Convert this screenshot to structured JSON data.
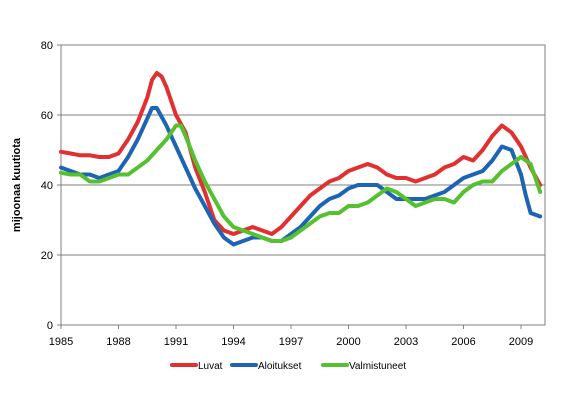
{
  "chart_data": {
    "type": "line",
    "title": "",
    "xlabel": "",
    "ylabel": "mijoonaa kuutiota",
    "xlim": [
      1985,
      2010.25
    ],
    "ylim": [
      0,
      80
    ],
    "x_ticks": [
      1985,
      1988,
      1991,
      1994,
      1997,
      2000,
      2003,
      2006,
      2009
    ],
    "y_ticks": [
      0,
      20,
      40,
      60,
      80
    ],
    "grid": true,
    "legend_position": "bottom",
    "series": [
      {
        "name": "Luvat",
        "color": "#e03030",
        "x": [
          1985,
          1985.5,
          1986,
          1986.5,
          1987,
          1987.5,
          1988,
          1988.5,
          1989,
          1989.5,
          1989.75,
          1990,
          1990.25,
          1990.5,
          1991,
          1991.5,
          1992,
          1992.5,
          1993,
          1993.5,
          1994,
          1994.5,
          1995,
          1995.5,
          1996,
          1996.5,
          1997,
          1997.5,
          1998,
          1998.5,
          1999,
          1999.5,
          2000,
          2000.5,
          2001,
          2001.5,
          2002,
          2002.5,
          2003,
          2003.5,
          2004,
          2004.5,
          2005,
          2005.5,
          2006,
          2006.5,
          2007,
          2007.5,
          2008,
          2008.5,
          2009,
          2009.5,
          2010
        ],
        "values": [
          49.5,
          49,
          48.5,
          48.5,
          48,
          48,
          49,
          53,
          58,
          65,
          70,
          72,
          71,
          68,
          60,
          55,
          45,
          38,
          30,
          27,
          26,
          27,
          28,
          27,
          26,
          28,
          31,
          34,
          37,
          39,
          41,
          42,
          44,
          45,
          46,
          45,
          43,
          42,
          42,
          41,
          42,
          43,
          45,
          46,
          48,
          47,
          50,
          54,
          57,
          55,
          51,
          45,
          40
        ]
      },
      {
        "name": "Aloitukset",
        "color": "#1e64b4",
        "x": [
          1985,
          1985.5,
          1986,
          1986.5,
          1987,
          1987.5,
          1988,
          1988.5,
          1989,
          1989.5,
          1989.75,
          1990,
          1990.5,
          1991,
          1991.5,
          1992,
          1992.5,
          1993,
          1993.5,
          1994,
          1994.5,
          1995,
          1995.5,
          1996,
          1996.5,
          1997,
          1997.5,
          1998,
          1998.5,
          1999,
          1999.5,
          2000,
          2000.5,
          2001,
          2001.5,
          2002,
          2002.5,
          2003,
          2003.5,
          2004,
          2004.5,
          2005,
          2005.5,
          2006,
          2006.5,
          2007,
          2007.5,
          2008,
          2008.5,
          2009,
          2009.25,
          2009.5,
          2010
        ],
        "values": [
          45,
          44,
          43,
          43,
          42,
          43,
          44,
          48,
          53,
          59,
          62,
          62,
          57,
          51,
          45,
          39,
          34,
          29,
          25,
          23,
          24,
          25,
          25,
          24,
          24,
          26,
          28,
          31,
          34,
          36,
          37,
          39,
          40,
          40,
          40,
          38,
          36,
          36,
          36,
          36,
          37,
          38,
          40,
          42,
          43,
          44,
          47,
          51,
          50,
          43,
          37,
          32,
          31
        ]
      },
      {
        "name": "Valmistuneet",
        "color": "#55c030",
        "x": [
          1985,
          1985.5,
          1986,
          1986.5,
          1987,
          1987.5,
          1988,
          1988.5,
          1989,
          1989.5,
          1990,
          1990.5,
          1991,
          1991.25,
          1991.5,
          1992,
          1992.5,
          1993,
          1993.5,
          1994,
          1994.5,
          1995,
          1995.5,
          1996,
          1996.5,
          1997,
          1997.5,
          1998,
          1998.5,
          1999,
          1999.5,
          2000,
          2000.5,
          2001,
          2001.5,
          2002,
          2002.5,
          2003,
          2003.5,
          2004,
          2004.5,
          2005,
          2005.5,
          2006,
          2006.5,
          2007,
          2007.5,
          2008,
          2008.5,
          2009,
          2009.5,
          2010
        ],
        "values": [
          43.5,
          43,
          43,
          41,
          41,
          42,
          43,
          43,
          45,
          47,
          50,
          53,
          57,
          57,
          54,
          47,
          41,
          36,
          31,
          28,
          27,
          26,
          25,
          24,
          24,
          25,
          27,
          29,
          31,
          32,
          32,
          34,
          34,
          35,
          37,
          39,
          38,
          36,
          34,
          35,
          36,
          36,
          35,
          38,
          40,
          41,
          41,
          44,
          46,
          48,
          46,
          38
        ]
      }
    ]
  }
}
